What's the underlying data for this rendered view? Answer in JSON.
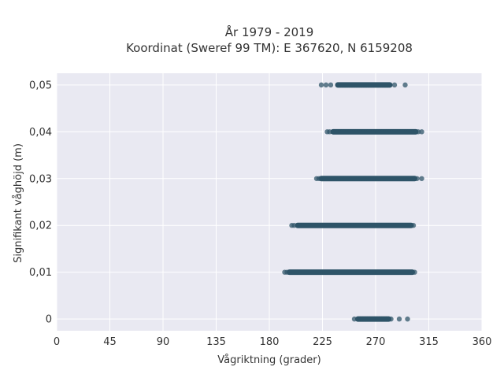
{
  "chart_data": {
    "type": "scatter",
    "title_lines": [
      "År 1979 - 2019",
      "Koordinat (Sweref 99 TM): E 367620, N 6159208"
    ],
    "xlabel": "Vågriktning (grader)",
    "ylabel": "Signifikant våghöjd (m)",
    "xlim": [
      0,
      360
    ],
    "ylim": [
      -0.0025,
      0.0525
    ],
    "xticks": [
      0,
      45,
      90,
      135,
      180,
      225,
      270,
      315,
      360
    ],
    "xtick_labels": [
      "0",
      "45",
      "90",
      "135",
      "180",
      "225",
      "270",
      "315",
      "360"
    ],
    "yticks": [
      0,
      0.01,
      0.02,
      0.03,
      0.04,
      0.05
    ],
    "ytick_labels": [
      "0",
      "0,01",
      "0,02",
      "0,03",
      "0,04",
      "0,05"
    ],
    "grid": true,
    "colors": {
      "background": "#e9e9f2",
      "grid": "#ffffff",
      "marker": "#2f5468"
    },
    "series": [
      {
        "bands": [
          {
            "y": 0.0,
            "x_min": 255,
            "x_max": 281,
            "outliers": [
              252,
              255,
              283,
              290,
              297
            ]
          },
          {
            "y": 0.01,
            "x_min": 197,
            "x_max": 301,
            "outliers": [
              193,
              195,
              303
            ]
          },
          {
            "y": 0.02,
            "x_min": 204,
            "x_max": 300,
            "outliers": [
              199,
              201,
              302
            ]
          },
          {
            "y": 0.03,
            "x_min": 224,
            "x_max": 303,
            "outliers": [
              220,
              222,
              305,
              309
            ]
          },
          {
            "y": 0.04,
            "x_min": 234,
            "x_max": 304,
            "outliers": [
              229,
              231,
              306,
              309
            ]
          },
          {
            "y": 0.05,
            "x_min": 238,
            "x_max": 282,
            "outliers": [
              224,
              228,
              232,
              286,
              295
            ]
          }
        ]
      }
    ]
  }
}
